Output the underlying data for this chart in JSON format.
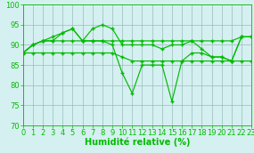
{
  "x": [
    0,
    1,
    2,
    3,
    4,
    5,
    6,
    7,
    8,
    9,
    10,
    11,
    12,
    13,
    14,
    15,
    16,
    17,
    18,
    19,
    20,
    21,
    22,
    23
  ],
  "line1": [
    88,
    90,
    91,
    91,
    91,
    91,
    91,
    91,
    91,
    91,
    91,
    91,
    91,
    91,
    91,
    91,
    91,
    91,
    91,
    91,
    91,
    91,
    92,
    92
  ],
  "line2": [
    88,
    90,
    91,
    91,
    93,
    94,
    91,
    94,
    95,
    94,
    90,
    90,
    90,
    90,
    89,
    90,
    90,
    91,
    89,
    87,
    87,
    86,
    92,
    92
  ],
  "line3": [
    88,
    90,
    91,
    92,
    93,
    94,
    91,
    91,
    91,
    90,
    83,
    78,
    85,
    85,
    85,
    76,
    86,
    88,
    88,
    87,
    87,
    86,
    92,
    92
  ],
  "line4": [
    88,
    88,
    88,
    88,
    88,
    88,
    88,
    88,
    88,
    88,
    87,
    86,
    86,
    86,
    86,
    86,
    86,
    86,
    86,
    86,
    86,
    86,
    86,
    86
  ],
  "color": "#00bb00",
  "bg_color": "#d5f0f0",
  "grid_color": "#99bbbb",
  "xlabel": "Humidité relative (%)",
  "xlabel_fontsize": 7,
  "tick_fontsize": 6,
  "ylim": [
    70,
    100
  ],
  "xlim": [
    0,
    23
  ],
  "yticks": [
    70,
    75,
    80,
    85,
    90,
    95,
    100
  ],
  "xticks": [
    0,
    1,
    2,
    3,
    4,
    5,
    6,
    7,
    8,
    9,
    10,
    11,
    12,
    13,
    14,
    15,
    16,
    17,
    18,
    19,
    20,
    21,
    22,
    23
  ]
}
